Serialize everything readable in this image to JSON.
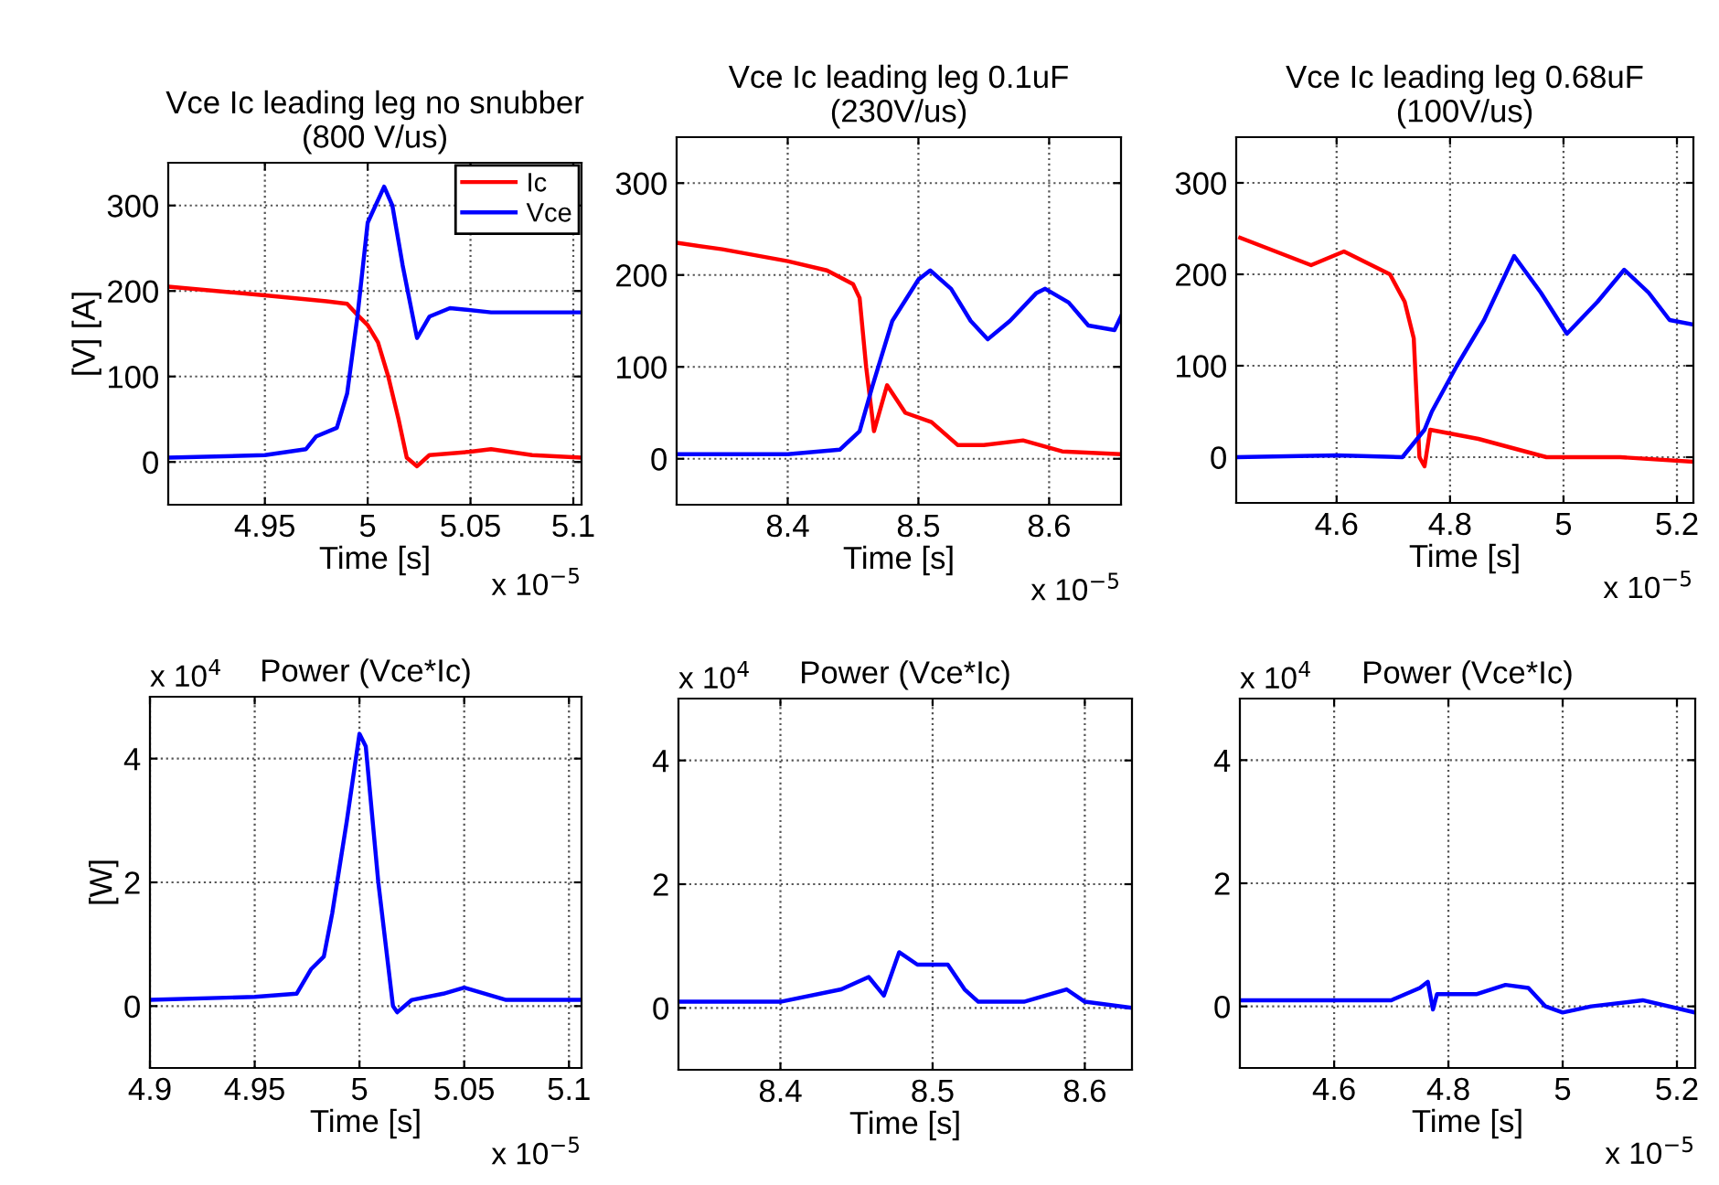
{
  "chart_data": [
    {
      "type": "line",
      "title": "Vce Ic leading leg no snubber\n(800 V/us)",
      "xlabel": "Time [s]",
      "ylabel": "[V] [A]",
      "annotations": [
        "x 10$^{−5}$"
      ],
      "xlim": [
        4.903,
        5.104
      ],
      "xticks": [
        4.95,
        5,
        5.05,
        5.1
      ],
      "ylim": [
        -50,
        350
      ],
      "yticks": [
        0,
        100,
        200,
        300
      ],
      "grid": true,
      "legend": "top right",
      "line_style": "solid",
      "series": [
        {
          "name": "Ic",
          "color": "#ff0000",
          "x": [
            4.903,
            4.95,
            4.98,
            4.99,
            4.995,
            5.0,
            5.005,
            5.01,
            5.015,
            5.019,
            5.024,
            5.03,
            5.05,
            5.06,
            5.08,
            5.104
          ],
          "values": [
            205,
            195,
            188,
            185,
            172,
            160,
            140,
            100,
            50,
            5,
            -5,
            8,
            12,
            15,
            8,
            5
          ]
        },
        {
          "name": "Vce",
          "color": "#0000ff",
          "x": [
            4.903,
            4.95,
            4.97,
            4.975,
            4.985,
            4.99,
            4.995,
            5.0,
            5.008,
            5.012,
            5.017,
            5.024,
            5.03,
            5.04,
            5.06,
            5.104
          ],
          "values": [
            5,
            8,
            15,
            30,
            40,
            80,
            170,
            280,
            322,
            300,
            230,
            145,
            170,
            180,
            175,
            175
          ]
        }
      ]
    },
    {
      "type": "line",
      "title": "Vce Ic leading leg 0.1uF\n(230V/us)",
      "xlabel": "Time [s]",
      "annotations": [
        "x 10$^{−5}$"
      ],
      "xlim": [
        8.315,
        8.655
      ],
      "xticks": [
        8.4,
        8.5,
        8.6
      ],
      "ylim": [
        -50,
        350
      ],
      "yticks": [
        0,
        100,
        200,
        300
      ],
      "grid": true,
      "line_style": "solid",
      "series": [
        {
          "color": "#ff0000",
          "x": [
            8.315,
            8.35,
            8.4,
            8.43,
            8.45,
            8.455,
            8.46,
            8.466,
            8.476,
            8.49,
            8.51,
            8.53,
            8.55,
            8.58,
            8.61,
            8.655
          ],
          "values": [
            235,
            228,
            215,
            205,
            190,
            175,
            100,
            30,
            80,
            50,
            40,
            15,
            15,
            20,
            8,
            5
          ]
        },
        {
          "color": "#0000ff",
          "x": [
            8.315,
            8.4,
            8.44,
            8.455,
            8.465,
            8.48,
            8.5,
            8.509,
            8.525,
            8.54,
            8.553,
            8.57,
            8.59,
            8.597,
            8.615,
            8.63,
            8.65,
            8.655
          ],
          "values": [
            5,
            5,
            10,
            30,
            80,
            150,
            195,
            205,
            185,
            150,
            130,
            150,
            180,
            185,
            170,
            145,
            140,
            155
          ]
        }
      ]
    },
    {
      "type": "line",
      "title": "Vce Ic leading leg 0.68uF\n(100V/us)",
      "xlabel": "Time [s]",
      "annotations": [
        "x 10$^{−5}$"
      ],
      "xlim": [
        4.423,
        5.229
      ],
      "xticks": [
        4.6,
        4.8,
        5,
        5.2
      ],
      "ylim": [
        -50,
        350
      ],
      "yticks": [
        0,
        100,
        200,
        300
      ],
      "grid": true,
      "line_style": "solid",
      "series": [
        {
          "color": "#ff0000",
          "x": [
            4.43,
            4.555,
            4.613,
            4.694,
            4.72,
            4.736,
            4.746,
            4.755,
            4.765,
            4.85,
            4.97,
            5.1,
            5.229
          ],
          "values": [
            240,
            210,
            225,
            200,
            170,
            130,
            0,
            -10,
            30,
            20,
            0,
            0,
            -5
          ]
        },
        {
          "color": "#0000ff",
          "x": [
            4.423,
            4.6,
            4.716,
            4.755,
            4.768,
            4.812,
            4.86,
            4.913,
            4.96,
            5.006,
            5.06,
            5.107,
            5.15,
            5.187,
            5.229
          ],
          "values": [
            0,
            2,
            0,
            30,
            50,
            100,
            150,
            220,
            180,
            135,
            170,
            205,
            180,
            150,
            145
          ]
        }
      ]
    },
    {
      "type": "line",
      "title": "Power (Vce*Ic)",
      "xlabel": "Time [s]",
      "ylabel": "[W]",
      "annotations": [
        "x 10$^{4}$",
        "x 10$^{−5}$"
      ],
      "xlim": [
        4.9,
        5.106
      ],
      "xticks": [
        4.9,
        4.95,
        5,
        5.05,
        5.1
      ],
      "ylim": [
        -1,
        5
      ],
      "yticks": [
        0,
        2,
        4
      ],
      "grid": true,
      "line_style": "solid",
      "series": [
        {
          "color": "#0000ff",
          "x": [
            4.9,
            4.95,
            4.97,
            4.977,
            4.983,
            4.987,
            4.994,
            5.0,
            5.003,
            5.009,
            5.016,
            5.018,
            5.025,
            5.04,
            5.05,
            5.07,
            5.106
          ],
          "values": [
            0.1,
            0.15,
            0.2,
            0.6,
            0.8,
            1.5,
            3,
            4.4,
            4.2,
            2,
            0,
            -0.1,
            0.1,
            0.2,
            0.3,
            0.1,
            0.1
          ]
        }
      ]
    },
    {
      "type": "line",
      "title": "Power (Vce*Ic)",
      "xlabel": "Time [s]",
      "annotations": [
        "x 10$^{4}$"
      ],
      "xlim": [
        8.333,
        8.631
      ],
      "xticks": [
        8.4,
        8.5,
        8.6
      ],
      "ylim": [
        -1,
        5
      ],
      "yticks": [
        0,
        2,
        4
      ],
      "grid": true,
      "line_style": "solid",
      "series": [
        {
          "color": "#0000ff",
          "x": [
            8.333,
            8.4,
            8.44,
            8.458,
            8.468,
            8.478,
            8.49,
            8.51,
            8.521,
            8.53,
            8.56,
            8.588,
            8.6,
            8.631
          ],
          "values": [
            0.1,
            0.1,
            0.3,
            0.5,
            0.2,
            0.9,
            0.7,
            0.7,
            0.3,
            0.1,
            0.1,
            0.3,
            0.1,
            0
          ]
        }
      ]
    },
    {
      "type": "line",
      "title": "Power (Vce*Ic)",
      "xlabel": "Time [s]",
      "annotations": [
        "x 10$^{4}$",
        "x 10$^{−5}$"
      ],
      "xlim": [
        4.435,
        5.232
      ],
      "xticks": [
        4.6,
        4.8,
        5,
        5.2
      ],
      "ylim": [
        -1,
        5
      ],
      "yticks": [
        0,
        2,
        4
      ],
      "grid": true,
      "line_style": "solid",
      "series": [
        {
          "color": "#0000ff",
          "x": [
            4.44,
            4.7,
            4.75,
            4.764,
            4.773,
            4.78,
            4.85,
            4.9,
            4.94,
            4.97,
            5.0,
            5.05,
            5.14,
            5.232
          ],
          "values": [
            0.1,
            0.1,
            0.3,
            0.4,
            -0.05,
            0.2,
            0.2,
            0.35,
            0.3,
            0,
            -0.1,
            0,
            0.1,
            -0.1
          ]
        }
      ]
    }
  ]
}
